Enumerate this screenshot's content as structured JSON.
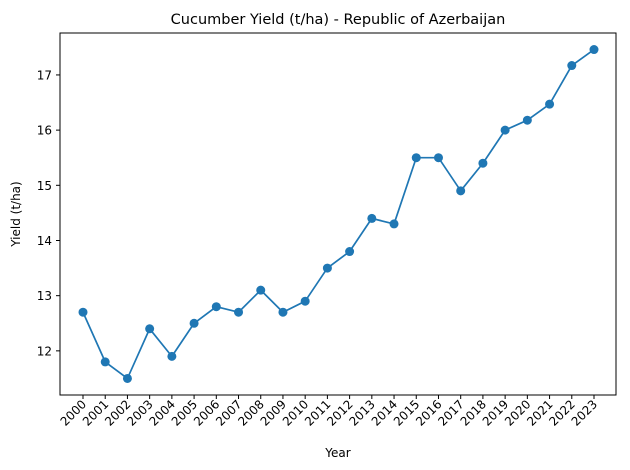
{
  "chart_data": {
    "type": "line",
    "title": "Cucumber Yield (t/ha) - Republic of Azerbaijan",
    "xlabel": "Year",
    "ylabel": "Yield (t/ha)",
    "x": [
      "2000",
      "2001",
      "2002",
      "2003",
      "2004",
      "2005",
      "2006",
      "2007",
      "2008",
      "2009",
      "2010",
      "2011",
      "2012",
      "2013",
      "2014",
      "2015",
      "2016",
      "2017",
      "2018",
      "2019",
      "2020",
      "2021",
      "2022",
      "2023"
    ],
    "series": [
      {
        "values": [
          12.7,
          11.8,
          11.5,
          12.4,
          11.9,
          12.5,
          12.8,
          12.7,
          13.1,
          12.7,
          12.9,
          13.5,
          13.8,
          14.4,
          14.3,
          15.5,
          15.5,
          14.9,
          15.4,
          16.0,
          16.18,
          16.47,
          17.17,
          17.46
        ],
        "color": "#1f77b4",
        "marker": "circle"
      }
    ],
    "yticks": [
      12,
      13,
      14,
      15,
      16,
      17
    ],
    "ylim": [
      11.2,
      17.76
    ],
    "grid": false,
    "legend": "none"
  }
}
